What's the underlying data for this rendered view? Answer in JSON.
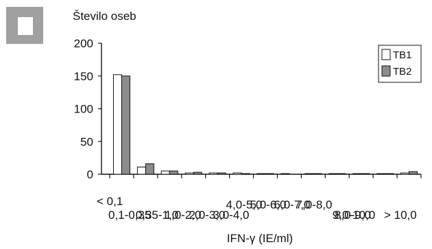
{
  "chart_data": {
    "type": "bar",
    "title": "Število oseb",
    "xlabel": "IFN-γ (IE/ml)",
    "ylabel": "",
    "ylim": [
      0,
      200
    ],
    "yticks": [
      0,
      50,
      100,
      150,
      200
    ],
    "categories": [
      "< 0,1",
      "0,1-0,35",
      "0,35-1,0",
      "1,0-2,0",
      "2,0-3,0",
      "3,0-4,0",
      "4,0-5,0",
      "5,0-6,0",
      "6,0-7,0",
      "7,0-8,0",
      "8,0-9,0",
      "9,0-10,0",
      "> 10,0"
    ],
    "series": [
      {
        "name": "TB1",
        "values": [
          152,
          11,
          5,
          2,
          2,
          2,
          1,
          1,
          1,
          1,
          1,
          1,
          2
        ]
      },
      {
        "name": "TB2",
        "values": [
          150,
          16,
          5,
          3,
          2,
          1,
          1,
          0,
          1,
          1,
          1,
          1,
          4
        ]
      }
    ],
    "legend_position": "top-right",
    "grid": false
  },
  "colors": {
    "tb1_fill": "#ffffff",
    "tb2_fill": "#8c8c8c",
    "corner_box": "#a0a0a0",
    "axis": "#111111"
  }
}
